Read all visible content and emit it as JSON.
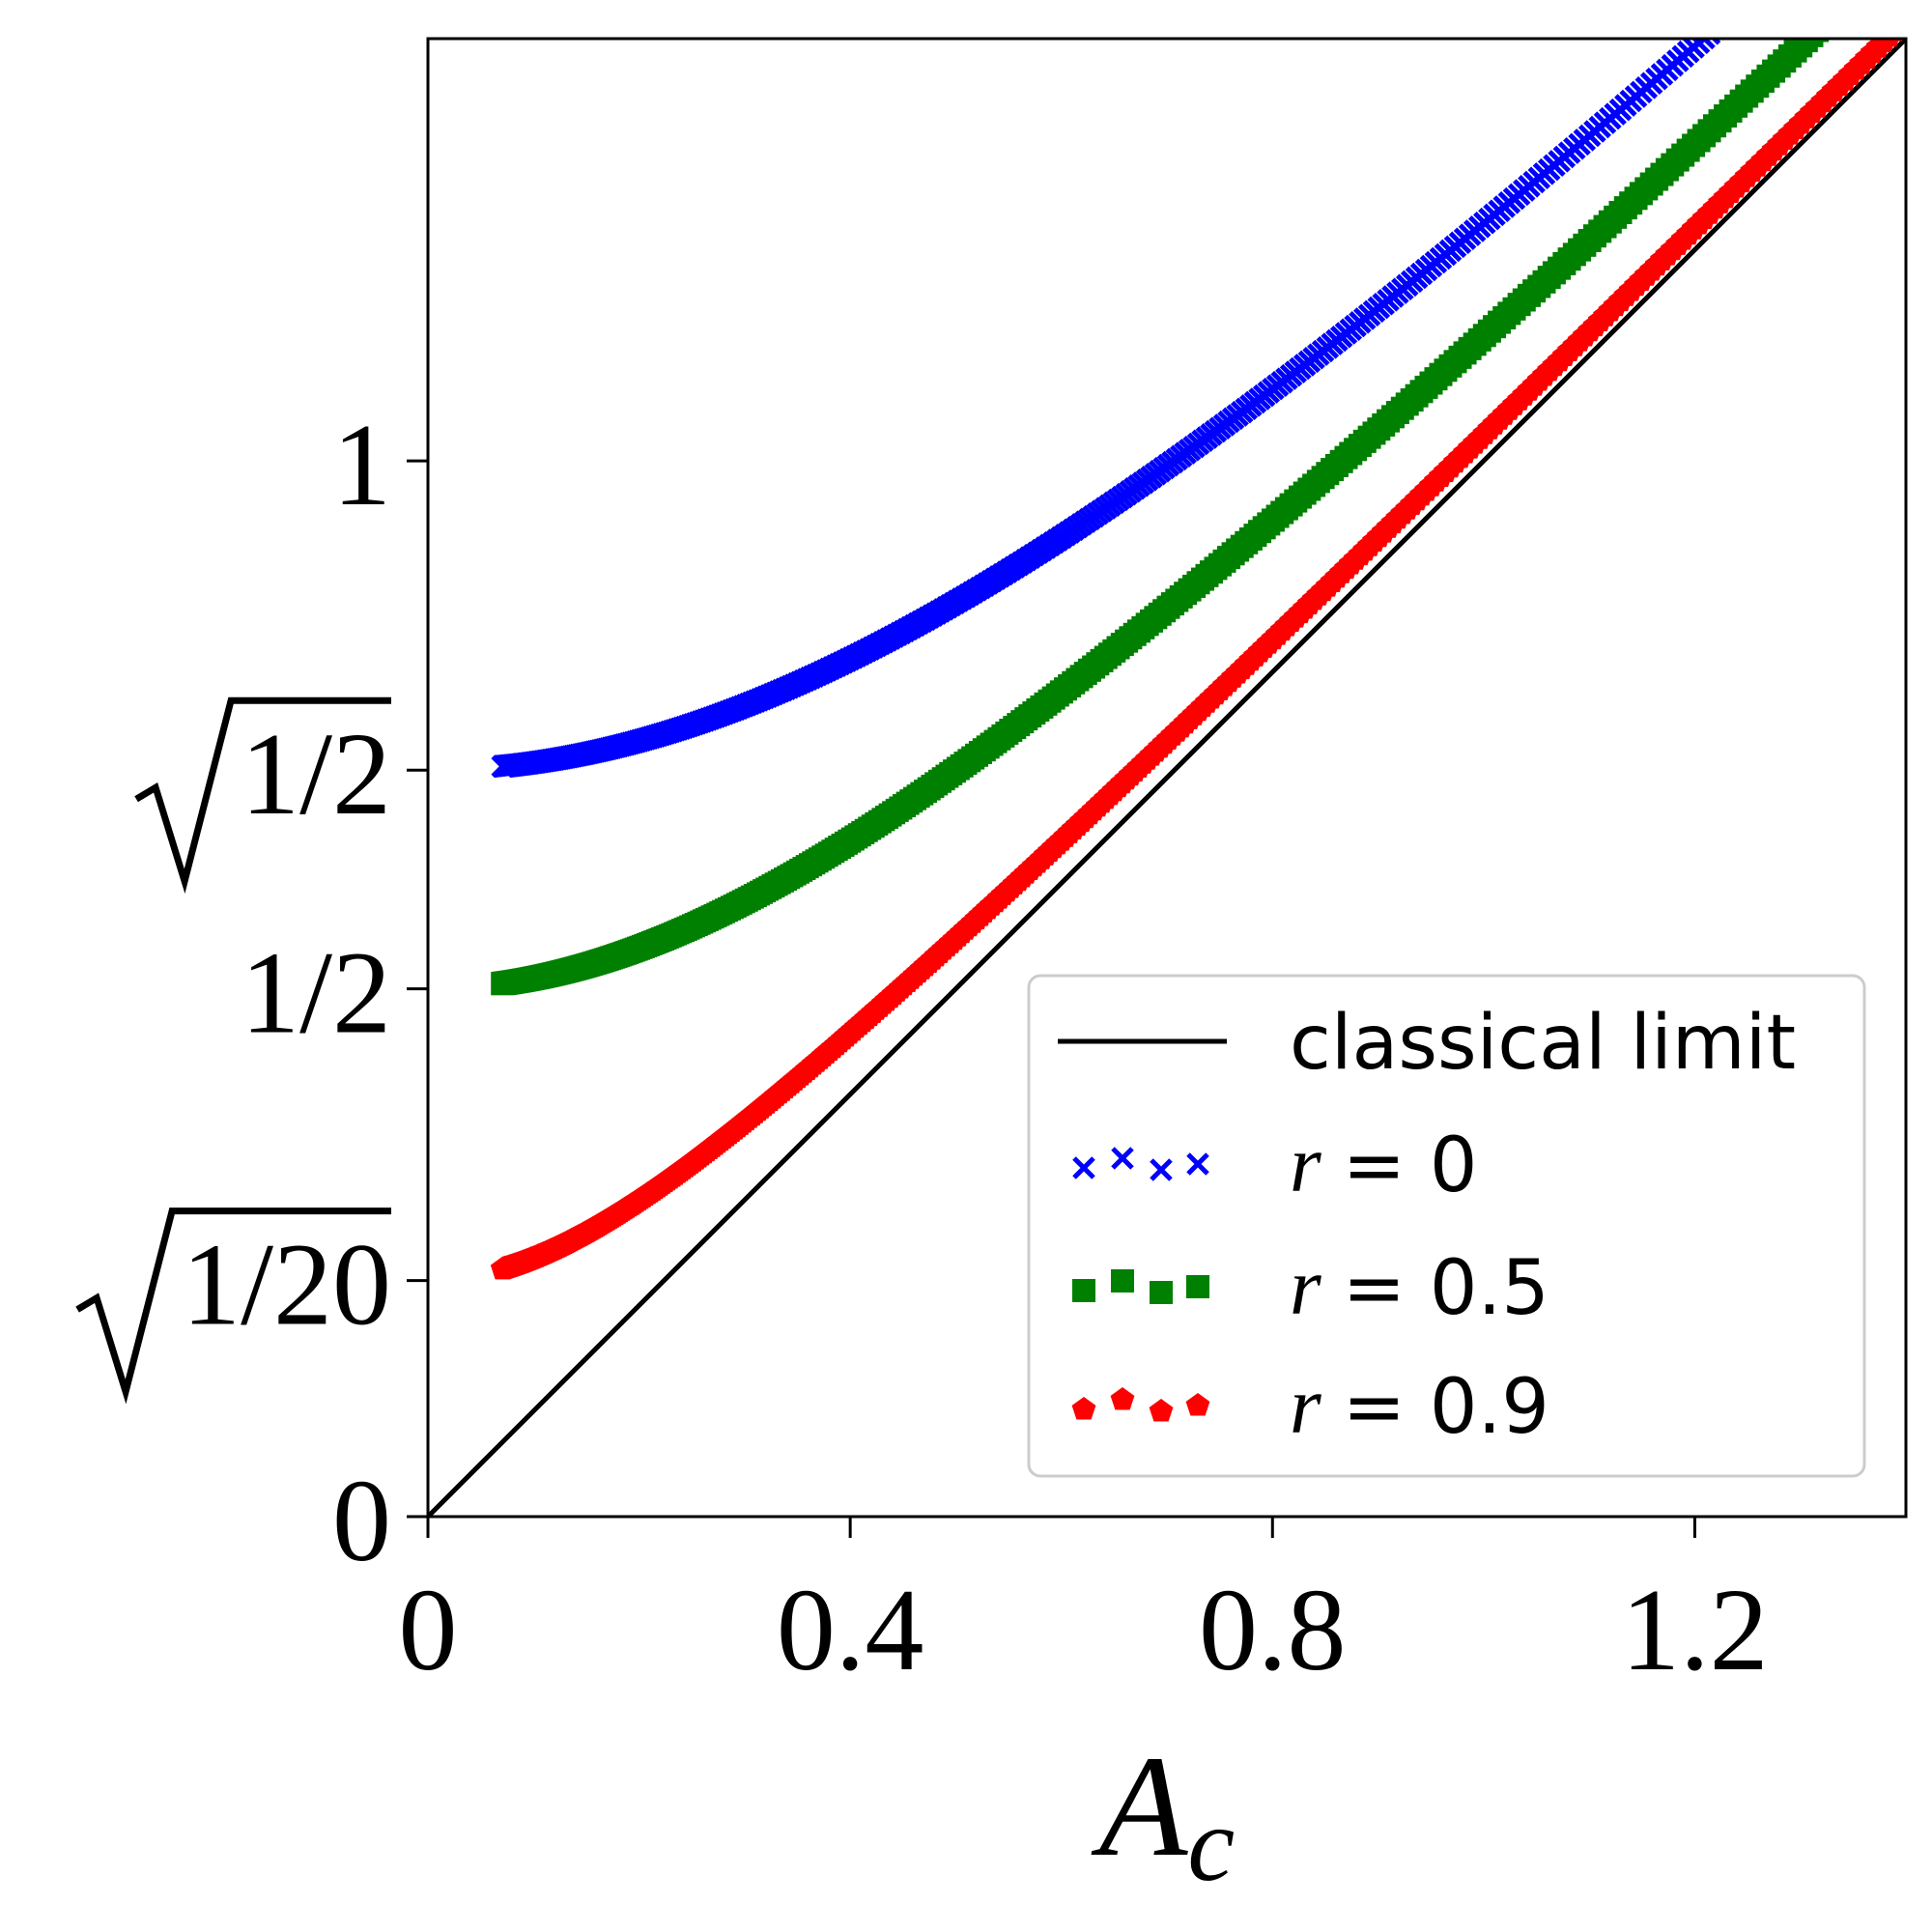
{
  "chart_data": {
    "type": "scatter",
    "xlabel": {
      "main": "A",
      "sub": "c"
    },
    "xlim": [
      0,
      1.4
    ],
    "ylim": [
      0,
      1.4
    ],
    "x_ticks": [
      {
        "value": 0,
        "label": "0"
      },
      {
        "value": 0.4,
        "label": "0.4"
      },
      {
        "value": 0.8,
        "label": "0.8"
      },
      {
        "value": 1.2,
        "label": "1.2"
      }
    ],
    "y_ticks": [
      {
        "value": 0,
        "label": "0",
        "sqrt": false
      },
      {
        "value": 0.2236,
        "label": "1/20",
        "sqrt": true
      },
      {
        "value": 0.5,
        "label": "1/2",
        "sqrt": false
      },
      {
        "value": 0.7071,
        "label": "1/2",
        "sqrt": true
      },
      {
        "value": 1.0,
        "label": "1",
        "sqrt": false
      }
    ],
    "legend": {
      "placement": "lower-right",
      "entries": [
        {
          "label": "classical limit",
          "var": "",
          "eq": ""
        },
        {
          "label": "",
          "var": "r",
          "eq": "= 0"
        },
        {
          "label": "",
          "var": "r",
          "eq": "= 0.5"
        },
        {
          "label": "",
          "var": "r",
          "eq": "= 0.9"
        }
      ]
    },
    "series": [
      {
        "key": "classical",
        "style": "line",
        "color": "#000000",
        "points": [
          [
            0,
            0
          ],
          [
            1.4,
            1.4
          ]
        ]
      },
      {
        "key": "r0",
        "style": "marker",
        "marker": "x",
        "color": "#0000ff",
        "x_start": 0.0707,
        "x_end": 1.4,
        "offset": 0.5
      },
      {
        "key": "r05",
        "style": "marker",
        "marker": "square",
        "color": "#008000",
        "x_start": 0.0707,
        "x_end": 1.4,
        "offset": 0.25
      },
      {
        "key": "r09",
        "style": "marker",
        "marker": "pentagon",
        "color": "#ff0000",
        "x_start": 0.0707,
        "x_end": 1.4,
        "offset": 0.05
      }
    ],
    "grid": false
  }
}
